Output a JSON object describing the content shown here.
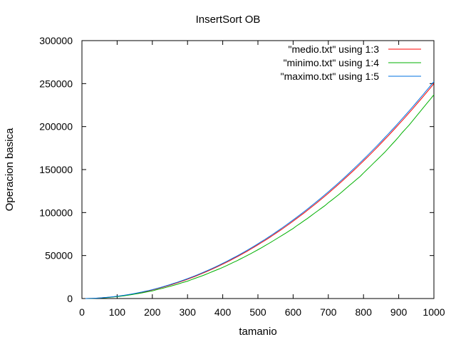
{
  "chart_data": {
    "type": "line",
    "title": "InsertSort OB",
    "xlabel": "tamanio",
    "ylabel": "Operacion basica",
    "xlim": [
      0,
      1000
    ],
    "ylim": [
      0,
      300000
    ],
    "xticks": [
      0,
      100,
      200,
      300,
      400,
      500,
      600,
      700,
      800,
      900,
      1000
    ],
    "yticks": [
      0,
      50000,
      100000,
      150000,
      200000,
      250000,
      300000
    ],
    "grid": false,
    "legend_position": "top-right",
    "x": [
      10,
      20,
      30,
      40,
      50,
      60,
      70,
      80,
      90,
      100,
      110,
      120,
      130,
      140,
      150,
      160,
      170,
      180,
      190,
      200,
      210,
      220,
      230,
      240,
      250,
      260,
      270,
      280,
      290,
      300,
      310,
      320,
      330,
      340,
      350,
      360,
      370,
      380,
      390,
      400,
      410,
      420,
      430,
      440,
      450,
      460,
      470,
      480,
      490,
      500,
      510,
      520,
      530,
      540,
      550,
      560,
      570,
      580,
      590,
      600,
      610,
      620,
      630,
      640,
      650,
      660,
      670,
      680,
      690,
      700,
      710,
      720,
      730,
      740,
      750,
      760,
      770,
      780,
      790,
      800,
      810,
      820,
      830,
      840,
      850,
      860,
      870,
      880,
      890,
      900,
      910,
      920,
      930,
      940,
      950,
      960,
      970,
      980,
      990,
      1000
    ],
    "series": [
      {
        "name": "\"medio.txt\" using 1:3",
        "color": "#ff0000",
        "values": [
          25,
          100,
          225,
          400,
          625,
          900,
          1225,
          1600,
          2025,
          2500,
          3025,
          3600,
          4225,
          4900,
          5625,
          6400,
          7225,
          8100,
          9025,
          10000,
          11025,
          12100,
          13225,
          14400,
          15625,
          16900,
          18225,
          19600,
          21025,
          22500,
          24025,
          25600,
          27225,
          28900,
          30625,
          32400,
          34225,
          36100,
          38025,
          40000,
          42025,
          44100,
          46225,
          48400,
          50625,
          52900,
          55225,
          57600,
          60025,
          62500,
          65025,
          67600,
          70225,
          72900,
          75625,
          78400,
          81225,
          84100,
          87025,
          90000,
          93025,
          96100,
          99225,
          102400,
          105625,
          108900,
          112225,
          115600,
          119025,
          122500,
          126025,
          129600,
          133225,
          136900,
          140625,
          144400,
          148225,
          152100,
          156025,
          160000,
          164025,
          168100,
          172225,
          176400,
          180625,
          184900,
          189225,
          193600,
          198025,
          202500,
          207025,
          211600,
          216225,
          220900,
          225625,
          230400,
          235225,
          240100,
          245025,
          250000
        ]
      },
      {
        "name": "\"minimo.txt\" using 1:4",
        "color": "#00b000",
        "values": [
          20,
          90,
          205,
          365,
          575,
          820,
          1115,
          1455,
          1840,
          2280,
          2750,
          3270,
          3840,
          4450,
          5110,
          5820,
          6560,
          7350,
          8200,
          8900,
          10000,
          11000,
          12050,
          13100,
          14200,
          15300,
          16500,
          17800,
          19100,
          20200,
          21800,
          23300,
          24800,
          26200,
          27800,
          29500,
          31200,
          32800,
          34500,
          36200,
          38000,
          40000,
          42000,
          43800,
          46000,
          48000,
          50200,
          52300,
          54500,
          56800,
          59000,
          61500,
          63800,
          66300,
          68800,
          71300,
          73800,
          76300,
          79000,
          81500,
          84500,
          87300,
          90200,
          93000,
          96000,
          99000,
          102000,
          105000,
          108000,
          111500,
          114500,
          117800,
          121000,
          124500,
          128000,
          131500,
          135000,
          138500,
          142000,
          146000,
          150000,
          154000,
          158000,
          162000,
          166000,
          170000,
          174500,
          179000,
          183500,
          188000,
          193000,
          197500,
          202000,
          207000,
          212000,
          217000,
          222000,
          227000,
          232000,
          237000
        ]
      },
      {
        "name": "\"maximo.txt\" using  1:5",
        "color": "#0070e0",
        "values": [
          30,
          110,
          245,
          430,
          670,
          960,
          1300,
          1700,
          2150,
          2650,
          3200,
          3800,
          4450,
          5150,
          5900,
          6700,
          7550,
          8450,
          9400,
          10400,
          11450,
          12550,
          13700,
          14900,
          16150,
          17450,
          18800,
          20200,
          21650,
          23150,
          24700,
          26300,
          27950,
          29650,
          31400,
          33200,
          35050,
          36950,
          38900,
          40900,
          42950,
          45050,
          47200,
          49400,
          51650,
          53950,
          56300,
          58700,
          61150,
          63650,
          66200,
          68800,
          71450,
          74150,
          76900,
          79700,
          82550,
          85450,
          88400,
          91400,
          94450,
          97550,
          100700,
          103900,
          107150,
          110450,
          113800,
          117200,
          120650,
          124150,
          127700,
          131300,
          134950,
          138650,
          142400,
          146200,
          150050,
          153950,
          157900,
          161900,
          165950,
          170050,
          174200,
          178400,
          182650,
          186950,
          191300,
          195700,
          200150,
          204650,
          209200,
          213800,
          218450,
          223150,
          227900,
          232700,
          237550,
          242450,
          247400,
          252400
        ]
      }
    ]
  }
}
